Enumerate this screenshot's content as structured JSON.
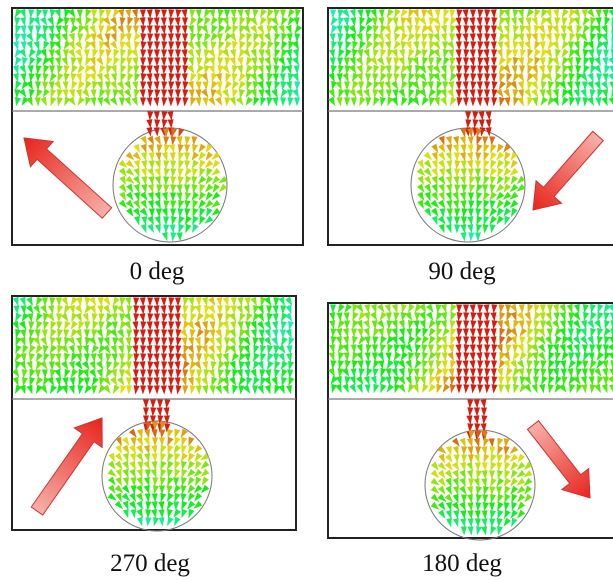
{
  "panels": [
    {
      "caption": "0 deg"
    },
    {
      "caption": "90 deg"
    },
    {
      "caption": "270 deg"
    },
    {
      "caption": "180 deg"
    }
  ]
}
